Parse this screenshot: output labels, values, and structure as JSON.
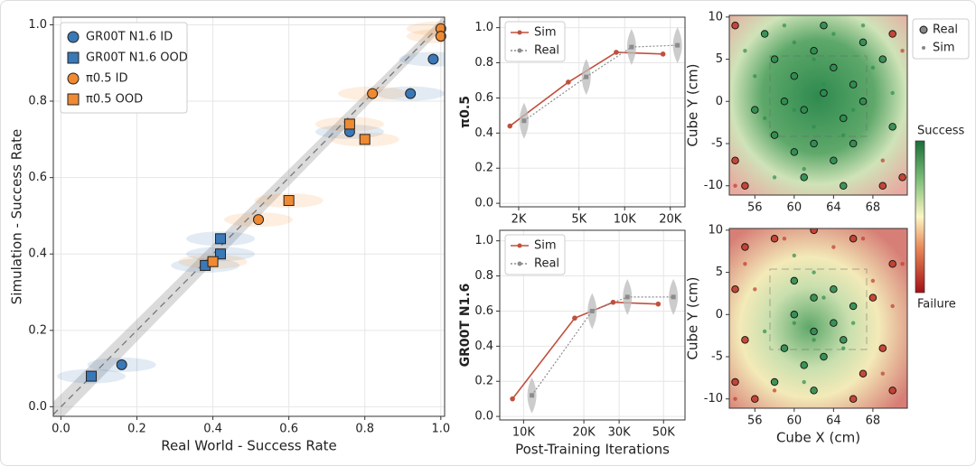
{
  "chart_data": [
    {
      "type": "scatter",
      "xlabel": "Real World - Success Rate",
      "ylabel": "Simulation - Success Rate",
      "xlim": [
        -0.02,
        1.01
      ],
      "ylim": [
        -0.025,
        1.02
      ],
      "xticks": [
        {
          "value": 0,
          "label": "0.0"
        },
        0.2,
        0.4,
        0.6,
        0.8,
        {
          "value": 1,
          "label": "1.0"
        }
      ],
      "yticks": [
        {
          "value": 0,
          "label": "0.0"
        },
        0.2,
        0.4,
        0.6,
        0.8,
        {
          "value": 1,
          "label": "1.0"
        }
      ],
      "grid": true,
      "legend": "upper left",
      "series": [
        {
          "name": "GR00T N1.6 ID",
          "color": "#3a78b8",
          "marker": "circle",
          "x": [
            0.16,
            0.76,
            0.92,
            0.98
          ],
          "values": [
            0.11,
            0.72,
            0.82,
            0.91
          ]
        },
        {
          "name": "GR00T N1.6 OOD",
          "color": "#3a78b8",
          "marker": "square",
          "x": [
            0.08,
            0.38,
            0.42,
            0.42
          ],
          "values": [
            0.08,
            0.37,
            0.4,
            0.44
          ]
        },
        {
          "name": "π0.5 ID",
          "color": "#f08a32",
          "marker": "circle",
          "x": [
            0.52,
            0.82,
            1.0,
            1.0
          ],
          "values": [
            0.49,
            0.82,
            0.99,
            0.97
          ]
        },
        {
          "name": "π0.5 OOD",
          "color": "#f08a32",
          "marker": "square",
          "x": [
            0.4,
            0.6,
            0.76,
            0.8
          ],
          "values": [
            0.38,
            0.54,
            0.74,
            0.7
          ]
        }
      ]
    },
    {
      "type": "line",
      "ylabel": "π0.5",
      "xscale": "log",
      "xlim": [
        1500,
        25000
      ],
      "ylim": [
        -0.02,
        1.06
      ],
      "xticks": [
        {
          "value": 2000,
          "label": "2K"
        },
        {
          "value": 5000,
          "label": "5K"
        },
        {
          "value": 10000,
          "label": "10K"
        },
        {
          "value": 20000,
          "label": "20K"
        }
      ],
      "yticks": [
        {
          "value": 0,
          "label": "0.0"
        },
        0.2,
        0.4,
        0.6,
        0.8,
        {
          "value": 1,
          "label": "1.0"
        }
      ],
      "grid": true,
      "legend": "upper left",
      "series": [
        {
          "name": "Sim",
          "color": "#c0503d",
          "x": [
            1750,
            4250,
            8800,
            17900
          ],
          "values": [
            0.44,
            0.69,
            0.86,
            0.85
          ]
        },
        {
          "name": "Real",
          "color": "#8c8c8c",
          "x": [
            2170,
            5580,
            11100,
            22300
          ],
          "values": [
            0.47,
            0.72,
            0.89,
            0.9
          ]
        }
      ]
    },
    {
      "type": "line",
      "ylabel": "GR00T N1.6",
      "xlabel": "Post-Training Iterations",
      "xscale": "log",
      "xlim": [
        7600,
        64000
      ],
      "ylim": [
        -0.02,
        1.06
      ],
      "xticks": [
        {
          "value": 10000,
          "label": "10K"
        },
        {
          "value": 20000,
          "label": "20K"
        },
        {
          "value": 30000,
          "label": "30K"
        },
        {
          "value": 50000,
          "label": "50K"
        }
      ],
      "yticks": [
        {
          "value": 0,
          "label": "0.0"
        },
        0.2,
        0.4,
        0.6,
        0.8,
        {
          "value": 1,
          "label": "1.0"
        }
      ],
      "grid": true,
      "legend": "upper left",
      "series": [
        {
          "name": "Sim",
          "color": "#c0503d",
          "x": [
            8800,
            18000,
            28000,
            47000
          ],
          "values": [
            0.1,
            0.56,
            0.65,
            0.64
          ]
        },
        {
          "name": "Real",
          "color": "#8c8c8c",
          "x": [
            11000,
            22000,
            33000,
            56000
          ],
          "values": [
            0.12,
            0.6,
            0.68,
            0.68
          ]
        }
      ]
    },
    {
      "type": "heatscatter",
      "ylabel": "Cube Y (cm)",
      "xlim": [
        53.4,
        71.5
      ],
      "ylim": [
        -11.1,
        10.2
      ],
      "xticks": [
        56,
        60,
        64,
        68
      ],
      "yticks": [
        -10,
        -5,
        0,
        5,
        10
      ],
      "legend": "outside right",
      "success_color": "#2e8b4f",
      "failure_color": "#c0392b",
      "colorbar": {
        "high": "Success",
        "low": "Failure"
      },
      "series": [
        {
          "name": "Real",
          "x": [
            58,
            60,
            62,
            64,
            66,
            59,
            61,
            63,
            65,
            67,
            58,
            60,
            62,
            64,
            66,
            57,
            63,
            67,
            69,
            56,
            70,
            61,
            65,
            54,
            55,
            69,
            70,
            54,
            71
          ],
          "values": [
            5,
            3,
            6,
            4,
            2,
            0,
            -1,
            1,
            -2,
            0,
            -4,
            -6,
            -5,
            -7,
            -5,
            8,
            9,
            7,
            5,
            -1,
            -3,
            -9,
            -10,
            -7,
            -10,
            -10,
            8,
            9,
            -9
          ],
          "success": [
            1,
            1,
            1,
            1,
            1,
            1,
            1,
            1,
            1,
            1,
            1,
            1,
            1,
            1,
            1,
            1,
            1,
            1,
            1,
            1,
            1,
            1,
            1,
            0,
            0,
            0,
            0,
            0,
            0
          ]
        },
        {
          "name": "Sim",
          "x": [
            55,
            57,
            59,
            61,
            63,
            65,
            67,
            69,
            70,
            56,
            58,
            60,
            62,
            64,
            66,
            68,
            54,
            71,
            62,
            60
          ],
          "values": [
            6,
            -2,
            9,
            -8,
            2,
            -4,
            9,
            -7,
            1,
            3,
            -9,
            7,
            -3,
            8,
            -1,
            4,
            -10,
            6,
            5,
            -1
          ],
          "success": [
            1,
            1,
            1,
            1,
            1,
            1,
            1,
            0,
            1,
            1,
            1,
            1,
            1,
            1,
            1,
            1,
            0,
            0,
            1,
            1
          ]
        }
      ]
    },
    {
      "type": "heatscatter",
      "ylabel": "Cube Y (cm)",
      "xlabel": "Cube X (cm)",
      "xlim": [
        53.4,
        71.5
      ],
      "ylim": [
        -11.1,
        10.2
      ],
      "xticks": [
        56,
        60,
        64,
        68
      ],
      "yticks": [
        -10,
        -5,
        0,
        5,
        10
      ],
      "success_color": "#2e8b4f",
      "failure_color": "#c0392b",
      "series": [
        {
          "name": "Real",
          "x": [
            60,
            62,
            64,
            60,
            62,
            64,
            66,
            59,
            61,
            63,
            65,
            58,
            62,
            55,
            58,
            62,
            66,
            70,
            54,
            55,
            54,
            69,
            70,
            66,
            67,
            56,
            68
          ],
          "values": [
            4,
            2,
            3,
            0,
            -2,
            -1,
            1,
            -4,
            -6,
            -5,
            -3,
            -8,
            -9,
            8,
            9,
            10,
            9,
            6,
            3,
            -3,
            -8,
            -4,
            -9,
            -10,
            -7,
            -10,
            2
          ],
          "success": [
            1,
            1,
            1,
            1,
            1,
            1,
            1,
            1,
            1,
            1,
            1,
            1,
            1,
            0,
            0,
            0,
            0,
            0,
            0,
            0,
            0,
            0,
            0,
            0,
            0,
            0,
            0
          ]
        },
        {
          "name": "Sim",
          "x": [
            55,
            57,
            59,
            61,
            63,
            65,
            67,
            69,
            70,
            56,
            58,
            60,
            62,
            64,
            66,
            68,
            54,
            71,
            62,
            60
          ],
          "values": [
            6,
            -2,
            9,
            -8,
            2,
            -4,
            9,
            -7,
            1,
            3,
            -9,
            7,
            -3,
            8,
            -1,
            4,
            -10,
            6,
            5,
            -1
          ],
          "success": [
            0,
            1,
            0,
            1,
            1,
            1,
            0,
            0,
            0,
            0,
            0,
            1,
            1,
            0,
            1,
            0,
            0,
            0,
            1,
            1
          ]
        }
      ]
    }
  ]
}
